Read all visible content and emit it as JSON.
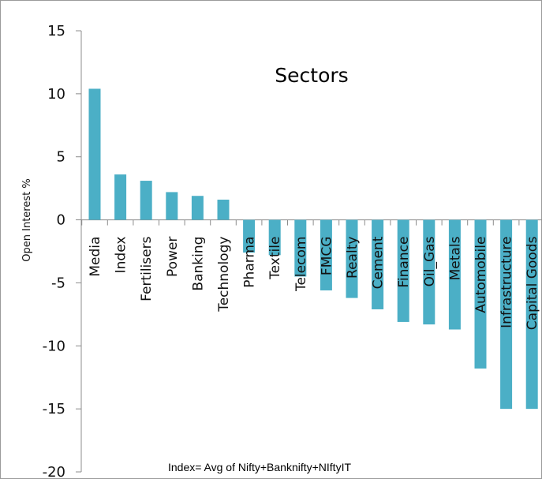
{
  "chart_data": {
    "type": "bar",
    "title": "Sectors",
    "xlabel": "",
    "ylabel": "Open Interest %",
    "ylim": [
      -20,
      15
    ],
    "yticks": [
      15,
      10,
      5,
      0,
      -5,
      -10,
      -15,
      -20
    ],
    "categories": [
      "Media",
      "Index",
      "Fertilisers",
      "Power",
      "Banking",
      "Technology",
      "Pharma",
      "Textile",
      "Telecom",
      "FMCG",
      "Realty",
      "Cement",
      "Finance",
      "Oil_Gas",
      "Metals",
      "Automobile",
      "Infrastructure",
      "Capital Goods"
    ],
    "values": [
      10.4,
      3.6,
      3.1,
      2.2,
      1.9,
      1.6,
      -2.6,
      -2.8,
      -4.5,
      -5.6,
      -6.2,
      -7.1,
      -8.1,
      -8.3,
      -8.7,
      -11.8,
      -15.0,
      -15.0
    ],
    "bar_color": "#4bafc6",
    "grid": false,
    "legend": "none",
    "annotation": "Index= Avg of Nifty+Banknifty+NIftyIT"
  }
}
